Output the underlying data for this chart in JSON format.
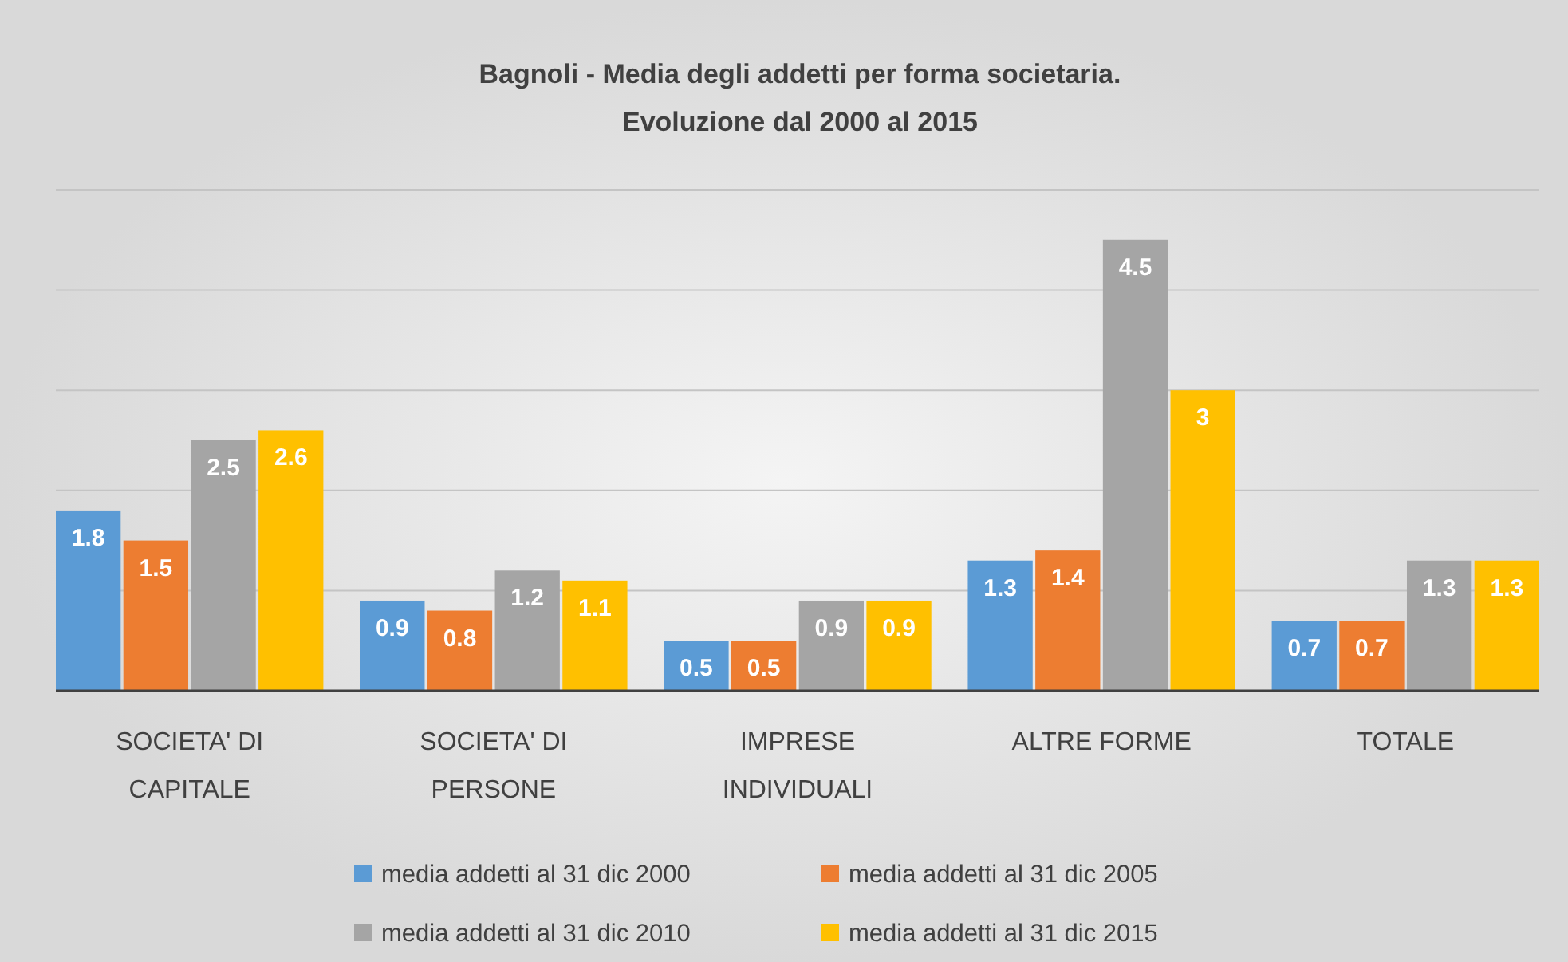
{
  "chart_data": {
    "type": "bar",
    "title": "Bagnoli - Media degli addetti per forma societaria.",
    "subtitle": "Evoluzione dal 2000 al 2015",
    "categories": [
      "SOCIETA' DI CAPITALE",
      "SOCIETA' DI PERSONE",
      "IMPRESE INDIVIDUALI",
      "ALTRE FORME",
      "TOTALE"
    ],
    "series": [
      {
        "name": "media addetti al 31 dic 2000",
        "color": "#5b9bd5",
        "values": [
          1.8,
          0.9,
          0.5,
          1.3,
          0.7
        ]
      },
      {
        "name": "media addetti al 31 dic 2005",
        "color": "#ed7d31",
        "values": [
          1.5,
          0.8,
          0.5,
          1.4,
          0.7
        ]
      },
      {
        "name": "media addetti al 31 dic 2010",
        "color": "#a5a5a5",
        "values": [
          2.5,
          1.2,
          0.9,
          4.5,
          1.3
        ]
      },
      {
        "name": "media addetti al 31 dic 2015",
        "color": "#ffc000",
        "values": [
          2.6,
          1.1,
          0.9,
          3,
          1.3
        ]
      }
    ],
    "ylim": [
      0,
      5
    ],
    "yticks": [
      {
        "value": 0,
        "label": null
      },
      {
        "value": 1,
        "label": null
      },
      {
        "value": 2,
        "label": null
      },
      {
        "value": 3,
        "label": null
      },
      {
        "value": 4,
        "label": null
      },
      {
        "value": 5,
        "label": null
      }
    ],
    "tick_labels": "x",
    "grid": "y",
    "legend": "bottom",
    "data_labels": true
  }
}
